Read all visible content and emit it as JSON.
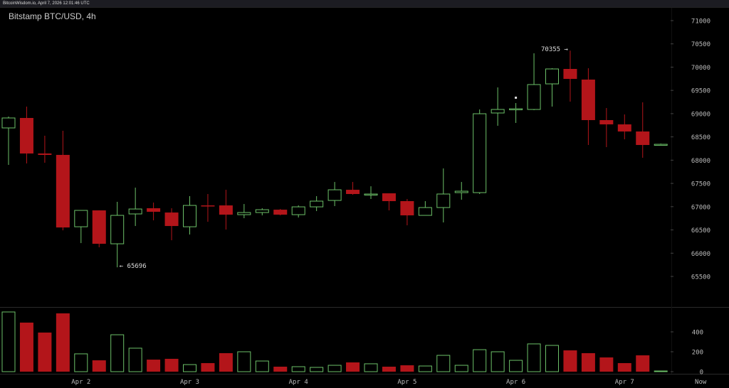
{
  "header": {
    "text": "BitcoinWisdom.io, April 7, 2026 12:01:46 UTC"
  },
  "chart_title": "Bitstamp BTC/USD, 4h",
  "colors": {
    "up": "#6cc068",
    "down": "#b3151a",
    "background": "#000000",
    "axis_text": "#bbbbbb"
  },
  "chart_data": {
    "type": "candlestick",
    "title": "Bitstamp BTC/USD, 4h",
    "price_ticks": [
      71000,
      70500,
      70000,
      69500,
      69000,
      68500,
      68000,
      67500,
      67000,
      66500,
      66000,
      65500
    ],
    "ylim": [
      65500,
      71000
    ],
    "volume_ticks": [
      0,
      200,
      400
    ],
    "volume_ylim": [
      0,
      600
    ],
    "x_labels": [
      {
        "label": "Apr 2",
        "index": 4
      },
      {
        "label": "Apr 3",
        "index": 10
      },
      {
        "label": "Apr 4",
        "index": 16
      },
      {
        "label": "Apr 5",
        "index": 22
      },
      {
        "label": "Apr 6",
        "index": 28
      },
      {
        "label": "Apr 7",
        "index": 34
      },
      {
        "label": "Now",
        "index": 38.2
      }
    ],
    "annotations": {
      "high": {
        "value": "70355",
        "text": "70355 →",
        "index": 31
      },
      "low": {
        "value": "65696",
        "text": "← 65696",
        "index": 6
      }
    },
    "candles": [
      [
        68693,
        68937,
        67898,
        68907,
        600
      ],
      [
        68907,
        69151,
        67929,
        68143,
        493
      ],
      [
        68143,
        68525,
        67944,
        68113,
        393
      ],
      [
        68113,
        68632,
        66492,
        66553,
        586
      ],
      [
        66568,
        66920,
        66217,
        66920,
        179
      ],
      [
        66920,
        66920,
        66126,
        66202,
        114
      ],
      [
        66202,
        67104,
        65696,
        66813,
        371
      ],
      [
        66844,
        67409,
        66584,
        66950,
        236
      ],
      [
        66966,
        67088,
        66706,
        66890,
        121
      ],
      [
        66874,
        66966,
        66278,
        66584,
        129
      ],
      [
        66568,
        67226,
        66401,
        67027,
        71
      ],
      [
        67027,
        67272,
        66675,
        67010,
        86
      ],
      [
        67027,
        67363,
        66508,
        66828,
        186
      ],
      [
        66828,
        67057,
        66752,
        66874,
        200
      ],
      [
        66874,
        66966,
        66813,
        66935,
        107
      ],
      [
        66935,
        66950,
        66813,
        66828,
        50
      ],
      [
        66828,
        67027,
        66767,
        66996,
        50
      ],
      [
        66996,
        67226,
        66905,
        67119,
        43
      ],
      [
        67134,
        67531,
        67012,
        67363,
        64
      ],
      [
        67363,
        67531,
        67256,
        67272,
        93
      ],
      [
        67256,
        67439,
        67165,
        67272,
        79
      ],
      [
        67287,
        67287,
        66920,
        67119,
        50
      ],
      [
        67119,
        67165,
        66599,
        66813,
        64
      ],
      [
        66813,
        67119,
        66813,
        66981,
        57
      ],
      [
        66981,
        67822,
        66661,
        67272,
        164
      ],
      [
        67302,
        67531,
        67150,
        67333,
        64
      ],
      [
        67302,
        69090,
        67272,
        68998,
        221
      ],
      [
        69014,
        69564,
        68739,
        69090,
        200
      ],
      [
        69090,
        69228,
        68800,
        69105,
        114
      ],
      [
        69090,
        70297,
        69075,
        69625,
        279
      ],
      [
        69640,
        69976,
        69151,
        69961,
        264
      ],
      [
        69961,
        70355,
        69258,
        69747,
        214
      ],
      [
        69732,
        69976,
        68326,
        68861,
        186
      ],
      [
        68861,
        69121,
        68280,
        68769,
        143
      ],
      [
        68769,
        68983,
        68448,
        68616,
        86
      ],
      [
        68616,
        69243,
        68051,
        68326,
        164
      ],
      [
        68326,
        68356,
        68326,
        68341,
        7
      ]
    ],
    "candle_fields": [
      "open",
      "high",
      "low",
      "close",
      "volume"
    ]
  }
}
